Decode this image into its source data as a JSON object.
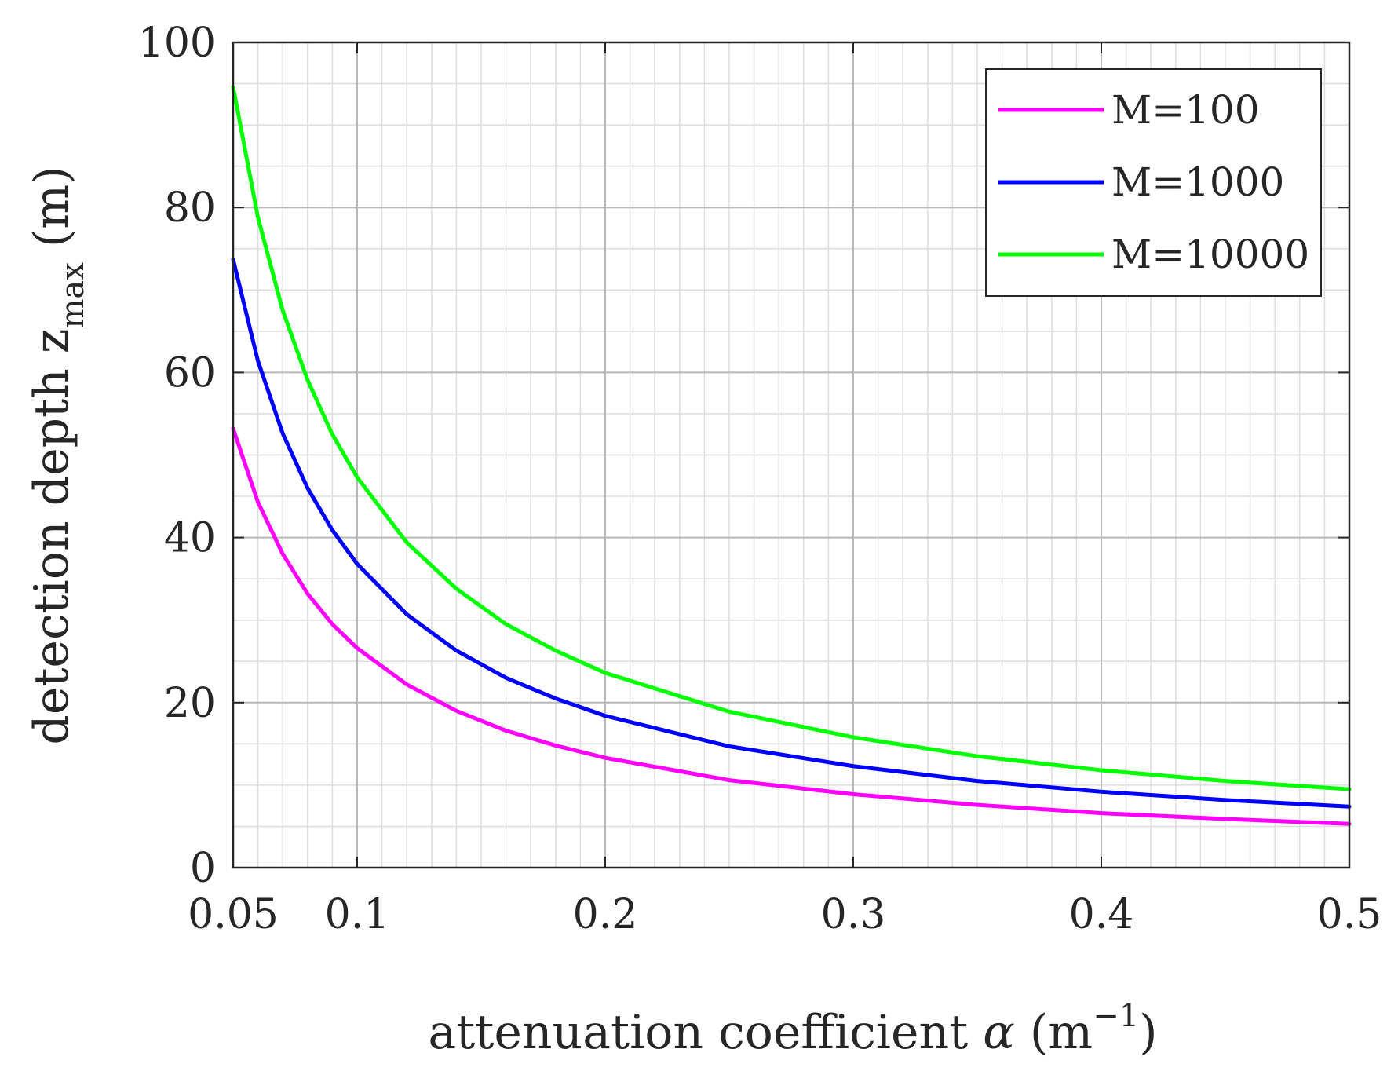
{
  "chart_data": {
    "type": "line",
    "title": "",
    "xlabel": {
      "text": "attenuation coefficient",
      "symbol": "α",
      "unit_open": " (m",
      "unit_exp": "−1",
      "unit_close": ")"
    },
    "ylabel": {
      "text": "detection depth z",
      "subscript": "max",
      "unit": " (m)"
    },
    "xlim": [
      0.05,
      0.5
    ],
    "ylim": [
      0,
      100
    ],
    "xticks": [
      0.05,
      0.1,
      0.2,
      0.3,
      0.4,
      0.5
    ],
    "xtick_labels": [
      "0.05",
      "0.1",
      "0.2",
      "0.3",
      "0.4",
      "0.5"
    ],
    "yticks": [
      0,
      20,
      40,
      60,
      80,
      100
    ],
    "ytick_labels": [
      "0",
      "20",
      "40",
      "60",
      "80",
      "100"
    ],
    "grid": true,
    "minor_grid": true,
    "legend_position": "top-right",
    "x": [
      0.05,
      0.06,
      0.07,
      0.08,
      0.09,
      0.1,
      0.12,
      0.14,
      0.16,
      0.18,
      0.2,
      0.25,
      0.3,
      0.35,
      0.4,
      0.45,
      0.5
    ],
    "series": [
      {
        "name": "M=100",
        "color": "#ff00ff",
        "values": [
          53.2,
          44.3,
          38.0,
          33.2,
          29.5,
          26.6,
          22.2,
          19.0,
          16.6,
          14.8,
          13.3,
          10.6,
          8.9,
          7.6,
          6.6,
          5.9,
          5.3
        ]
      },
      {
        "name": "M=1000",
        "color": "#0000ff",
        "values": [
          73.7,
          61.4,
          52.6,
          46.0,
          40.9,
          36.8,
          30.7,
          26.3,
          23.0,
          20.5,
          18.4,
          14.7,
          12.3,
          10.5,
          9.2,
          8.2,
          7.4
        ]
      },
      {
        "name": "M=10000",
        "color": "#00ff00",
        "values": [
          94.6,
          78.8,
          67.5,
          59.1,
          52.5,
          47.3,
          39.4,
          33.8,
          29.5,
          26.3,
          23.6,
          18.9,
          15.8,
          13.5,
          11.8,
          10.5,
          9.5
        ]
      }
    ]
  }
}
